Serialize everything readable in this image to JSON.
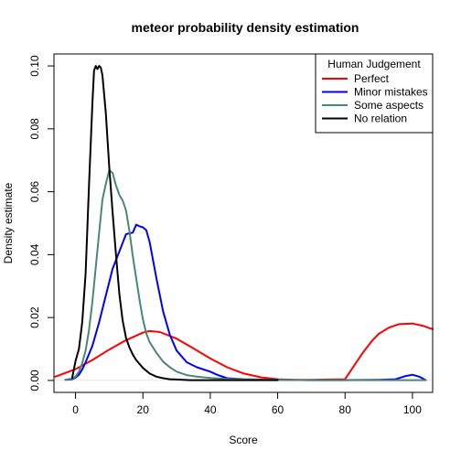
{
  "chart_data": {
    "type": "line",
    "title": "meteor  probability density estimation",
    "xlabel": "Score",
    "ylabel": "Density estimate",
    "xlim": [
      -6.4,
      106
    ],
    "ylim": [
      -0.0038,
      0.1038
    ],
    "xticks": [
      0,
      20,
      40,
      60,
      80,
      100
    ],
    "yticks": [
      0.0,
      0.02,
      0.04,
      0.06,
      0.08,
      0.1
    ],
    "ytick_labels": [
      "0.00",
      "0.02",
      "0.04",
      "0.06",
      "0.08",
      "0.10"
    ],
    "grid": false,
    "legend": {
      "title": "Human Judgement",
      "position": "top-right",
      "entries": [
        "Perfect",
        "Minor mistakes",
        "Some aspects",
        "No relation"
      ]
    },
    "series": [
      {
        "name": "Perfect",
        "color": "#ff0000",
        "x": [
          -6,
          0,
          5,
          10,
          15,
          20,
          22,
          25,
          30,
          35,
          40,
          45,
          50,
          55,
          60,
          65,
          70,
          75,
          80,
          82,
          85,
          88,
          90,
          93,
          96,
          100,
          103,
          106
        ],
        "y": [
          0.0012,
          0.0036,
          0.0065,
          0.0098,
          0.0128,
          0.0152,
          0.0157,
          0.0154,
          0.0133,
          0.0102,
          0.007,
          0.0042,
          0.0022,
          0.001,
          0.0004,
          0.0002,
          0.0002,
          0.0003,
          0.0004,
          0.0036,
          0.0084,
          0.0126,
          0.0148,
          0.0168,
          0.0179,
          0.0181,
          0.0174,
          0.0163
        ]
      },
      {
        "name": "Minor mistakes",
        "color": "#0000ff",
        "x": [
          -3,
          -1,
          0,
          1,
          2,
          3,
          5,
          7,
          9,
          11,
          13,
          15,
          17,
          18,
          19,
          20,
          21,
          22,
          24,
          26,
          28,
          30,
          33,
          36,
          40,
          42,
          45,
          50,
          60,
          70,
          80,
          90,
          95,
          98,
          100,
          102,
          104
        ],
        "y": [
          0.0002,
          0.0004,
          0.0009,
          0.0018,
          0.0035,
          0.0058,
          0.011,
          0.0185,
          0.027,
          0.0355,
          0.041,
          0.0465,
          0.047,
          0.0495,
          0.049,
          0.0487,
          0.0478,
          0.044,
          0.0325,
          0.022,
          0.0145,
          0.0095,
          0.0058,
          0.0042,
          0.0028,
          0.0018,
          0.0007,
          0.0004,
          0.0002,
          0.0001,
          0.0001,
          0.0002,
          0.0004,
          0.0014,
          0.0018,
          0.0012,
          0.0001
        ]
      },
      {
        "name": "Some aspects",
        "color": "#4a8870",
        "x": [
          -3,
          -1,
          0,
          1,
          2,
          3,
          4,
          5,
          6,
          7,
          8,
          9,
          10,
          11,
          12,
          13,
          14,
          15,
          16,
          17,
          18,
          19,
          20,
          21,
          22,
          24,
          26,
          28,
          30,
          33,
          36,
          40,
          45,
          50,
          60,
          70,
          80,
          90,
          100,
          104
        ],
        "y": [
          0.0002,
          0.0006,
          0.0012,
          0.0028,
          0.0055,
          0.0095,
          0.016,
          0.025,
          0.036,
          0.047,
          0.0575,
          0.0625,
          0.0668,
          0.066,
          0.062,
          0.059,
          0.0572,
          0.054,
          0.0475,
          0.0395,
          0.0325,
          0.0255,
          0.0195,
          0.015,
          0.0122,
          0.0088,
          0.006,
          0.0042,
          0.0028,
          0.0017,
          0.0012,
          0.0008,
          0.0005,
          0.0003,
          0.0002,
          0.0001,
          0.0001,
          0.0001,
          0.0001,
          0.0001
        ]
      },
      {
        "name": "No relation",
        "color": "#000000",
        "x": [
          -1,
          0,
          1,
          2,
          3,
          4,
          5,
          5.5,
          6,
          6.5,
          7,
          7.5,
          8,
          9,
          10,
          11,
          12,
          13,
          14,
          15,
          16,
          17,
          18,
          20,
          22,
          24,
          26,
          28,
          30,
          32,
          34,
          36,
          40,
          45,
          50,
          60
        ],
        "y": [
          0.0008,
          0.0062,
          0.01,
          0.0185,
          0.034,
          0.062,
          0.088,
          0.0985,
          0.1,
          0.099,
          0.1,
          0.0995,
          0.097,
          0.085,
          0.068,
          0.0535,
          0.04,
          0.0275,
          0.019,
          0.0135,
          0.0105,
          0.0082,
          0.0065,
          0.004,
          0.0022,
          0.0012,
          0.0007,
          0.0004,
          0.0003,
          0.0002,
          0.0001,
          0.0001,
          0.0001,
          0.0001,
          0.0001,
          0.0001
        ]
      }
    ]
  }
}
